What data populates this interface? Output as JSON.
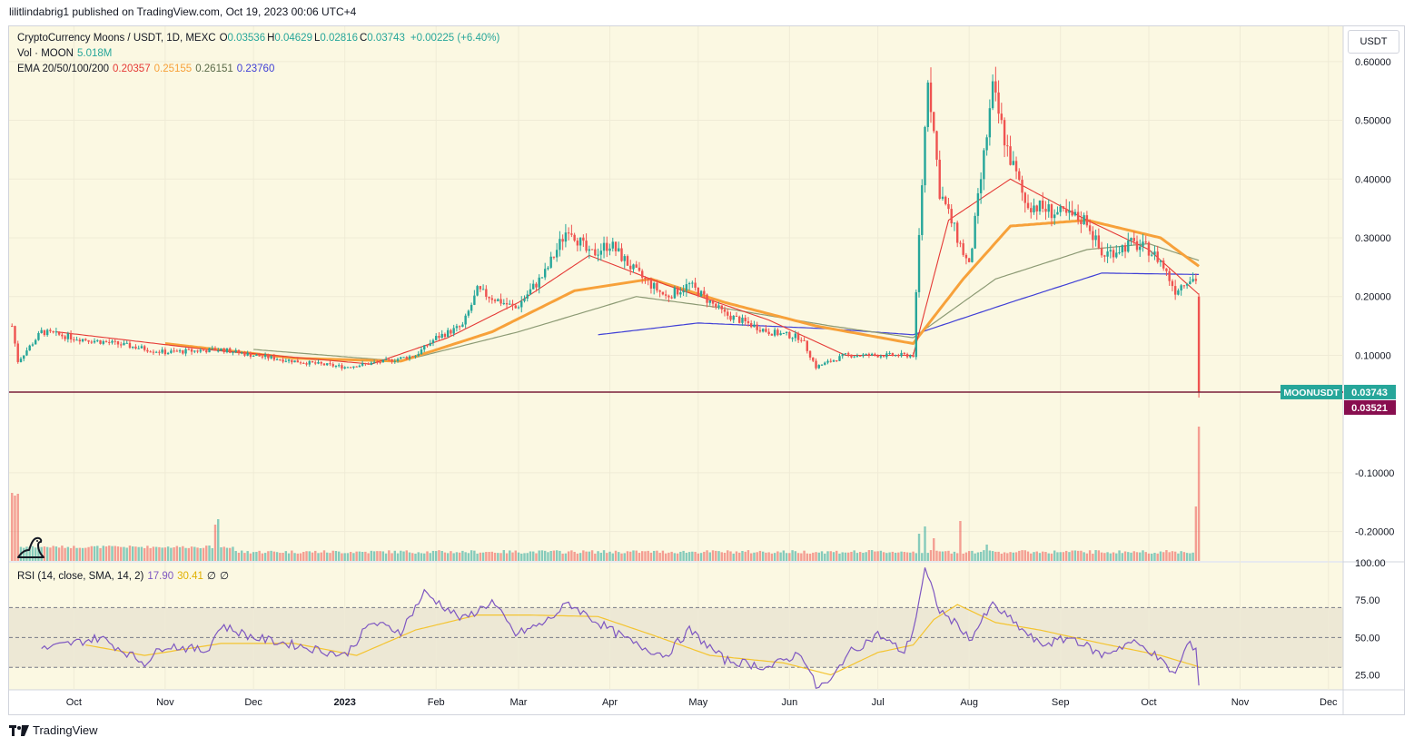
{
  "header": {
    "published_line": "lilitlindabrig1 published on TradingView.com, Oct 19, 2023 00:06 UTC+4"
  },
  "legend": {
    "symbol": "CryptoCurrency Moons / USDT, 1D, MEXC",
    "ohlc": [
      {
        "label": "O",
        "value": "0.03536"
      },
      {
        "label": "H",
        "value": "0.04629"
      },
      {
        "label": "L",
        "value": "0.02816"
      },
      {
        "label": "C",
        "value": "0.03743"
      }
    ],
    "change": "+0.00225 (+6.40%)",
    "vol_label": "Vol · MOON",
    "vol_value": "5.018M",
    "ema_label": "EMA 20/50/100/200",
    "ema_values": [
      "0.20357",
      "0.25155",
      "0.26151",
      "0.23760"
    ],
    "rsi_label": "RSI (14, close, SMA, 14, 2)",
    "rsi_value": "17.90",
    "rsi_ma_value": "30.41",
    "rsi_extra": [
      "∅",
      "∅"
    ]
  },
  "toolbar": {
    "currency_button": "USDT"
  },
  "footer": {
    "brand": "TradingView"
  },
  "colors": {
    "plot_bg": "#fbf8e2",
    "up": "#26a69a",
    "down": "#ef5350",
    "ema20": "#e53935",
    "ema50": "#f7a13a",
    "ema100": "#8c9a74",
    "ema200": "#3f3fd6",
    "rsi": "#7e57c2",
    "rsi_ma": "#f4c430",
    "price_line": "#7a1f3a",
    "last_price_bg": "#26a69a",
    "low_price_bg": "#880e4f"
  },
  "chart_data": [
    {
      "type": "candlestick",
      "symbol": "MOONUSDT",
      "title": "CryptoCurrency Moons / USDT, 1D, MEXC",
      "y_axis": {
        "ylim": [
          -0.25,
          0.66
        ],
        "ticks": [
          "0.60000",
          "0.50000",
          "0.40000",
          "0.30000",
          "0.20000",
          "0.10000",
          "-0.10000",
          "-0.20000"
        ],
        "tick_values": [
          0.6,
          0.5,
          0.4,
          0.3,
          0.2,
          0.1,
          -0.1,
          -0.2
        ]
      },
      "x_axis": {
        "range": [
          "2022-09-09",
          "2023-12-06"
        ],
        "ticks": [
          "Oct",
          "Nov",
          "Dec",
          "2023",
          "Feb",
          "Mar",
          "Apr",
          "May",
          "Jun",
          "Jul",
          "Aug",
          "Sep",
          "Oct",
          "Nov",
          "Dec"
        ],
        "tick_dates": [
          "2022-10-01",
          "2022-11-01",
          "2022-12-01",
          "2023-01-01",
          "2023-02-01",
          "2023-03-01",
          "2023-04-01",
          "2023-05-01",
          "2023-06-01",
          "2023-07-01",
          "2023-08-01",
          "2023-09-01",
          "2023-10-01",
          "2023-11-01",
          "2023-12-01"
        ]
      },
      "price_keypoints": [
        [
          "2022-09-10",
          0.15
        ],
        [
          "2022-09-12",
          0.09
        ],
        [
          "2022-09-20",
          0.14
        ],
        [
          "2022-10-01",
          0.13
        ],
        [
          "2022-10-15",
          0.12
        ],
        [
          "2022-11-01",
          0.105
        ],
        [
          "2022-11-20",
          0.11
        ],
        [
          "2022-12-01",
          0.1
        ],
        [
          "2022-12-15",
          0.09
        ],
        [
          "2023-01-01",
          0.08
        ],
        [
          "2023-01-15",
          0.09
        ],
        [
          "2023-01-25",
          0.1
        ],
        [
          "2023-02-01",
          0.13
        ],
        [
          "2023-02-10",
          0.15
        ],
        [
          "2023-02-15",
          0.21
        ],
        [
          "2023-02-28",
          0.18
        ],
        [
          "2023-03-10",
          0.24
        ],
        [
          "2023-03-18",
          0.32
        ],
        [
          "2023-03-25",
          0.27
        ],
        [
          "2023-04-01",
          0.29
        ],
        [
          "2023-04-10",
          0.24
        ],
        [
          "2023-04-20",
          0.2
        ],
        [
          "2023-04-28",
          0.22
        ],
        [
          "2023-05-10",
          0.17
        ],
        [
          "2023-05-25",
          0.14
        ],
        [
          "2023-06-05",
          0.13
        ],
        [
          "2023-06-10",
          0.08
        ],
        [
          "2023-06-20",
          0.1
        ],
        [
          "2023-07-01",
          0.1
        ],
        [
          "2023-07-13",
          0.1
        ],
        [
          "2023-07-15",
          0.3
        ],
        [
          "2023-07-18",
          0.58
        ],
        [
          "2023-07-22",
          0.38
        ],
        [
          "2023-07-28",
          0.3
        ],
        [
          "2023-08-01",
          0.25
        ],
        [
          "2023-08-05",
          0.4
        ],
        [
          "2023-08-09",
          0.55
        ],
        [
          "2023-08-14",
          0.45
        ],
        [
          "2023-08-20",
          0.36
        ],
        [
          "2023-09-01",
          0.34
        ],
        [
          "2023-09-10",
          0.33
        ],
        [
          "2023-09-15",
          0.27
        ],
        [
          "2023-09-25",
          0.29
        ],
        [
          "2023-10-01",
          0.28
        ],
        [
          "2023-10-05",
          0.26
        ],
        [
          "2023-10-10",
          0.21
        ],
        [
          "2023-10-14",
          0.23
        ],
        [
          "2023-10-17",
          0.23
        ],
        [
          "2023-10-18",
          0.0374
        ]
      ],
      "ema20_keypoints": [
        [
          "2022-09-25",
          0.14
        ],
        [
          "2022-11-15",
          0.11
        ],
        [
          "2023-01-10",
          0.085
        ],
        [
          "2023-02-05",
          0.13
        ],
        [
          "2023-03-01",
          0.19
        ],
        [
          "2023-03-25",
          0.27
        ],
        [
          "2023-04-20",
          0.22
        ],
        [
          "2023-05-25",
          0.16
        ],
        [
          "2023-06-20",
          0.1
        ],
        [
          "2023-07-13",
          0.1
        ],
        [
          "2023-07-25",
          0.33
        ],
        [
          "2023-08-15",
          0.4
        ],
        [
          "2023-09-10",
          0.33
        ],
        [
          "2023-10-01",
          0.28
        ],
        [
          "2023-10-18",
          0.2036
        ]
      ],
      "ema50_keypoints": [
        [
          "2022-11-01",
          0.12
        ],
        [
          "2022-12-15",
          0.095
        ],
        [
          "2023-01-20",
          0.09
        ],
        [
          "2023-02-20",
          0.14
        ],
        [
          "2023-03-20",
          0.21
        ],
        [
          "2023-04-15",
          0.23
        ],
        [
          "2023-05-10",
          0.19
        ],
        [
          "2023-06-10",
          0.15
        ],
        [
          "2023-07-13",
          0.12
        ],
        [
          "2023-07-30",
          0.23
        ],
        [
          "2023-08-15",
          0.32
        ],
        [
          "2023-09-10",
          0.33
        ],
        [
          "2023-10-05",
          0.3
        ],
        [
          "2023-10-18",
          0.2516
        ]
      ],
      "ema100_keypoints": [
        [
          "2022-12-01",
          0.11
        ],
        [
          "2023-01-20",
          0.09
        ],
        [
          "2023-03-01",
          0.14
        ],
        [
          "2023-04-10",
          0.2
        ],
        [
          "2023-05-10",
          0.18
        ],
        [
          "2023-06-15",
          0.15
        ],
        [
          "2023-07-13",
          0.13
        ],
        [
          "2023-08-10",
          0.23
        ],
        [
          "2023-09-10",
          0.28
        ],
        [
          "2023-10-01",
          0.29
        ],
        [
          "2023-10-18",
          0.2615
        ]
      ],
      "ema200_keypoints": [
        [
          "2023-03-28",
          0.135
        ],
        [
          "2023-05-01",
          0.155
        ],
        [
          "2023-06-15",
          0.145
        ],
        [
          "2023-07-13",
          0.135
        ],
        [
          "2023-08-15",
          0.19
        ],
        [
          "2023-09-15",
          0.24
        ],
        [
          "2023-10-18",
          0.2376
        ]
      ],
      "volume_note": "Volume histogram drawn in lower pane; spikes near 2022-09-10, 2022-11-20, 2023-07-17, 2023-07-29, 2023-08-07 and 2023-10-18",
      "last_price_label": {
        "name": "MOONUSDT",
        "value": "0.03743"
      },
      "low_price_label": {
        "value": "0.03521"
      }
    },
    {
      "type": "line",
      "title": "RSI (14, close, SMA, 14, 2)",
      "y_axis": {
        "ylim": [
          15,
          100
        ],
        "ticks": [
          "100.00",
          "75.00",
          "50.00",
          "25.00"
        ],
        "tick_values": [
          100,
          75,
          50,
          25
        ]
      },
      "bands": {
        "upper": 70,
        "middle": 50,
        "lower": 30
      },
      "rsi_keypoints": [
        [
          "2022-09-20",
          42
        ],
        [
          "2022-10-10",
          50
        ],
        [
          "2022-10-25",
          33
        ],
        [
          "2022-11-01",
          45
        ],
        [
          "2022-11-15",
          41
        ],
        [
          "2022-11-20",
          58
        ],
        [
          "2022-12-01",
          50
        ],
        [
          "2022-12-15",
          45
        ],
        [
          "2023-01-01",
          38
        ],
        [
          "2023-01-10",
          60
        ],
        [
          "2023-01-20",
          54
        ],
        [
          "2023-01-28",
          80
        ],
        [
          "2023-02-10",
          62
        ],
        [
          "2023-02-20",
          74
        ],
        [
          "2023-02-28",
          52
        ],
        [
          "2023-03-10",
          60
        ],
        [
          "2023-03-18",
          73
        ],
        [
          "2023-03-28",
          60
        ],
        [
          "2023-04-10",
          45
        ],
        [
          "2023-04-20",
          38
        ],
        [
          "2023-04-28",
          55
        ],
        [
          "2023-05-10",
          35
        ],
        [
          "2023-05-25",
          30
        ],
        [
          "2023-06-05",
          40
        ],
        [
          "2023-06-10",
          17
        ],
        [
          "2023-06-15",
          20
        ],
        [
          "2023-06-20",
          38
        ],
        [
          "2023-07-01",
          52
        ],
        [
          "2023-07-10",
          40
        ],
        [
          "2023-07-13",
          55
        ],
        [
          "2023-07-17",
          95
        ],
        [
          "2023-07-22",
          68
        ],
        [
          "2023-07-30",
          55
        ],
        [
          "2023-08-01",
          48
        ],
        [
          "2023-08-09",
          72
        ],
        [
          "2023-08-15",
          62
        ],
        [
          "2023-08-25",
          45
        ],
        [
          "2023-09-05",
          50
        ],
        [
          "2023-09-15",
          38
        ],
        [
          "2023-09-25",
          47
        ],
        [
          "2023-10-01",
          42
        ],
        [
          "2023-10-10",
          25
        ],
        [
          "2023-10-14",
          45
        ],
        [
          "2023-10-17",
          44
        ],
        [
          "2023-10-18",
          17.9
        ]
      ],
      "rsi_ma_keypoints": [
        [
          "2022-10-05",
          45
        ],
        [
          "2022-10-25",
          38
        ],
        [
          "2022-11-20",
          46
        ],
        [
          "2022-12-15",
          46
        ],
        [
          "2023-01-05",
          38
        ],
        [
          "2023-01-25",
          55
        ],
        [
          "2023-02-15",
          65
        ],
        [
          "2023-03-05",
          65
        ],
        [
          "2023-03-28",
          64
        ],
        [
          "2023-04-15",
          52
        ],
        [
          "2023-05-05",
          38
        ],
        [
          "2023-05-30",
          33
        ],
        [
          "2023-06-15",
          25
        ],
        [
          "2023-07-01",
          40
        ],
        [
          "2023-07-13",
          45
        ],
        [
          "2023-07-20",
          62
        ],
        [
          "2023-07-28",
          72
        ],
        [
          "2023-08-10",
          60
        ],
        [
          "2023-08-25",
          55
        ],
        [
          "2023-09-15",
          46
        ],
        [
          "2023-10-05",
          38
        ],
        [
          "2023-10-18",
          30.41
        ]
      ]
    }
  ]
}
